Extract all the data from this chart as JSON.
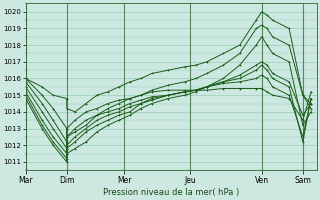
{
  "xlabel": "Pression niveau de la mer( hPa )",
  "bg_color": "#cce8e0",
  "plot_bg_color": "#cce8e0",
  "grid_color": "#99ccbb",
  "line_color": "#1a5c1a",
  "ylim": [
    1010.5,
    1020.5
  ],
  "xlim": [
    0,
    5.3
  ],
  "day_labels": [
    "Mar",
    "Dim",
    "Mer",
    "Jeu",
    "Ven",
    "Sam"
  ],
  "day_ticks": [
    0,
    0.75,
    1.8,
    3.0,
    4.3,
    5.05
  ],
  "vline_positions": [
    0,
    0.75,
    1.8,
    3.0,
    4.3,
    5.05
  ],
  "series": [
    {
      "x": [
        0.0,
        0.3,
        0.5,
        0.75,
        0.75,
        0.9,
        1.1,
        1.3,
        1.5,
        1.7,
        1.9,
        2.1,
        2.3,
        2.6,
        2.9,
        3.1,
        3.3,
        3.6,
        3.9,
        4.2,
        4.3,
        4.4,
        4.5,
        4.8,
        5.05,
        5.2
      ],
      "y": [
        1016.0,
        1015.5,
        1015.0,
        1014.8,
        1014.2,
        1014.0,
        1014.5,
        1015.0,
        1015.2,
        1015.5,
        1015.8,
        1016.0,
        1016.3,
        1016.5,
        1016.7,
        1016.8,
        1017.0,
        1017.5,
        1018.0,
        1019.5,
        1020.0,
        1019.8,
        1019.5,
        1019.0,
        1015.0,
        1014.5
      ]
    },
    {
      "x": [
        0.0,
        0.3,
        0.5,
        0.75,
        0.75,
        0.9,
        1.1,
        1.3,
        1.5,
        1.7,
        1.9,
        2.1,
        2.3,
        2.6,
        2.9,
        3.1,
        3.3,
        3.6,
        3.9,
        4.2,
        4.3,
        4.4,
        4.5,
        4.8,
        5.05,
        5.2
      ],
      "y": [
        1016.0,
        1015.0,
        1014.2,
        1013.0,
        1012.5,
        1012.8,
        1013.2,
        1013.8,
        1014.2,
        1014.5,
        1014.8,
        1015.0,
        1015.3,
        1015.6,
        1015.8,
        1016.0,
        1016.3,
        1016.8,
        1017.5,
        1019.0,
        1019.2,
        1019.0,
        1018.5,
        1018.0,
        1015.0,
        1014.2
      ]
    },
    {
      "x": [
        0.0,
        0.3,
        0.5,
        0.75,
        0.75,
        0.9,
        1.1,
        1.3,
        1.5,
        1.7,
        1.9,
        2.1,
        2.3,
        2.6,
        2.9,
        3.1,
        3.3,
        3.6,
        3.9,
        4.2,
        4.3,
        4.4,
        4.5,
        4.8,
        5.05,
        5.2
      ],
      "y": [
        1015.8,
        1014.5,
        1013.5,
        1012.2,
        1011.5,
        1011.8,
        1012.2,
        1012.8,
        1013.2,
        1013.5,
        1013.8,
        1014.2,
        1014.5,
        1014.8,
        1015.0,
        1015.2,
        1015.5,
        1016.0,
        1016.8,
        1018.0,
        1018.5,
        1018.0,
        1017.5,
        1017.0,
        1013.2,
        1014.0
      ]
    },
    {
      "x": [
        0.0,
        0.3,
        0.5,
        0.75,
        0.75,
        0.9,
        1.1,
        1.3,
        1.5,
        1.7,
        1.9,
        2.1,
        2.3,
        2.6,
        2.9,
        3.1,
        3.3,
        3.6,
        3.9,
        4.2,
        4.3,
        4.4,
        4.5,
        4.8,
        5.05,
        5.2
      ],
      "y": [
        1015.5,
        1014.0,
        1013.0,
        1011.8,
        1011.8,
        1012.2,
        1012.8,
        1013.2,
        1013.5,
        1013.8,
        1014.0,
        1014.5,
        1014.7,
        1015.0,
        1015.2,
        1015.3,
        1015.5,
        1015.8,
        1016.2,
        1016.8,
        1017.0,
        1016.8,
        1016.3,
        1015.8,
        1013.8,
        1014.5
      ]
    },
    {
      "x": [
        0.0,
        0.3,
        0.5,
        0.75,
        0.75,
        0.9,
        1.1,
        1.3,
        1.5,
        1.7,
        1.9,
        2.1,
        2.3,
        2.6,
        2.9,
        3.1,
        3.3,
        3.6,
        3.9,
        4.2,
        4.3,
        4.4,
        4.5,
        4.8,
        5.05,
        5.2
      ],
      "y": [
        1015.2,
        1013.5,
        1012.5,
        1011.5,
        1012.0,
        1012.5,
        1013.0,
        1013.5,
        1013.8,
        1014.0,
        1014.3,
        1014.5,
        1014.8,
        1015.0,
        1015.2,
        1015.3,
        1015.5,
        1015.8,
        1016.0,
        1016.5,
        1016.8,
        1016.5,
        1016.0,
        1015.5,
        1012.2,
        1014.8
      ]
    },
    {
      "x": [
        0.0,
        0.3,
        0.5,
        0.75,
        0.75,
        0.9,
        1.1,
        1.3,
        1.5,
        1.7,
        1.9,
        2.1,
        2.3,
        2.6,
        2.9,
        3.1,
        3.3,
        3.6,
        3.9,
        4.2,
        4.3,
        4.4,
        4.5,
        4.8,
        5.05,
        5.2
      ],
      "y": [
        1015.0,
        1013.2,
        1012.2,
        1011.2,
        1012.5,
        1013.0,
        1013.5,
        1013.8,
        1014.0,
        1014.2,
        1014.5,
        1014.7,
        1014.9,
        1015.0,
        1015.2,
        1015.3,
        1015.5,
        1015.7,
        1015.8,
        1016.0,
        1016.2,
        1016.0,
        1015.5,
        1015.0,
        1012.5,
        1014.8
      ]
    },
    {
      "x": [
        0.0,
        0.3,
        0.5,
        0.75,
        0.75,
        0.9,
        1.1,
        1.3,
        1.5,
        1.7,
        1.9,
        2.1,
        2.3,
        2.6,
        2.9,
        3.1,
        3.3,
        3.6,
        3.9,
        4.2,
        4.3,
        4.4,
        4.5,
        4.8,
        5.05,
        5.2
      ],
      "y": [
        1014.8,
        1013.0,
        1012.0,
        1011.0,
        1013.0,
        1013.5,
        1014.0,
        1014.2,
        1014.5,
        1014.7,
        1014.8,
        1015.0,
        1015.2,
        1015.3,
        1015.3,
        1015.3,
        1015.3,
        1015.4,
        1015.4,
        1015.4,
        1015.4,
        1015.2,
        1015.0,
        1014.8,
        1013.5,
        1015.2
      ]
    }
  ]
}
